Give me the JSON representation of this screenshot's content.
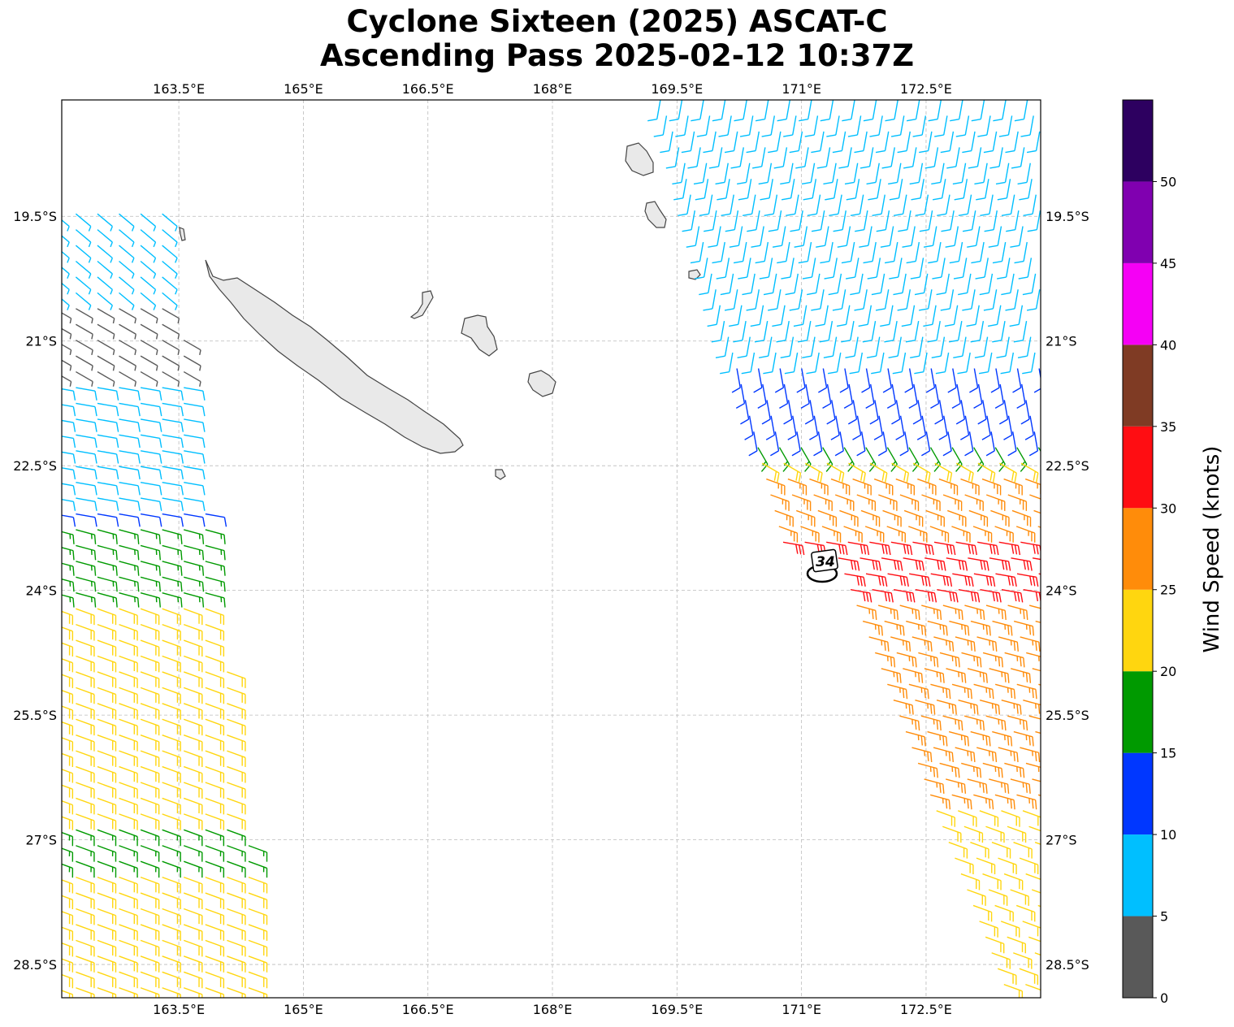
{
  "title": {
    "line1": "Cyclone Sixteen (2025) ASCAT-C",
    "line2": "Ascending Pass 2025-02-12 10:37Z"
  },
  "map": {
    "lon_range": [
      162.09,
      173.88
    ],
    "lat_range": [
      -28.9,
      -18.1
    ],
    "lon_ticks": [
      {
        "value": 163.5,
        "label": "163.5°E"
      },
      {
        "value": 165,
        "label": "165°E"
      },
      {
        "value": 166.5,
        "label": "166.5°E"
      },
      {
        "value": 168,
        "label": "168°E"
      },
      {
        "value": 169.5,
        "label": "169.5°E"
      },
      {
        "value": 171,
        "label": "171°E"
      },
      {
        "value": 172.5,
        "label": "172.5°E"
      }
    ],
    "lat_ticks": [
      {
        "value": -19.5,
        "label": "19.5°S"
      },
      {
        "value": -21,
        "label": "21°S"
      },
      {
        "value": -22.5,
        "label": "22.5°S"
      },
      {
        "value": -24,
        "label": "24°S"
      },
      {
        "value": -25.5,
        "label": "25.5°S"
      },
      {
        "value": -27,
        "label": "27°S"
      },
      {
        "value": -28.5,
        "label": "28.5°S"
      }
    ],
    "gridlines": true,
    "land_color": "#e9e9e9",
    "coast_color": "#444444"
  },
  "storm_marker": {
    "label": "34",
    "lon": 171.38,
    "lat": -23.68
  },
  "colorbar": {
    "label": "Wind Speed (knots)",
    "position": "right",
    "bins": [
      {
        "min": 0,
        "max": 5,
        "color": "#595959"
      },
      {
        "min": 5,
        "max": 10,
        "color": "#00bfff"
      },
      {
        "min": 10,
        "max": 15,
        "color": "#0037ff"
      },
      {
        "min": 15,
        "max": 20,
        "color": "#009a00"
      },
      {
        "min": 20,
        "max": 25,
        "color": "#ffd60f"
      },
      {
        "min": 25,
        "max": 30,
        "color": "#ff8c0a"
      },
      {
        "min": 30,
        "max": 35,
        "color": "#ff0d12"
      },
      {
        "min": 35,
        "max": 40,
        "color": "#7f3b24"
      },
      {
        "min": 40,
        "max": 45,
        "color": "#f500f5"
      },
      {
        "min": 45,
        "max": 50,
        "color": "#8000b0"
      },
      {
        "min": 50,
        "max": 55,
        "color": "#2d0060"
      }
    ],
    "tick_labels": [
      "0",
      "5",
      "10",
      "15",
      "20",
      "25",
      "30",
      "35",
      "40",
      "45",
      "50"
    ]
  },
  "wind_swaths": [
    {
      "name": "west-swath",
      "regions": [
        {
          "lat": [
            -28.9,
            -24.2
          ],
          "speed": 22,
          "dir": 110
        },
        {
          "lat": [
            -24.2,
            -23.2
          ],
          "speed": 17,
          "dir": 105
        },
        {
          "lat": [
            -23.2,
            -22.9
          ],
          "speed": 12,
          "dir": 100
        },
        {
          "lat": [
            -22.9,
            -21.4
          ],
          "speed": 8,
          "dir": 100
        },
        {
          "lat": [
            -21.4,
            -20.5
          ],
          "speed": 4,
          "dir": 120
        },
        {
          "lat": [
            -20.5,
            -19.3
          ],
          "speed": 7,
          "dir": 130
        },
        {
          "lat": [
            -27.3,
            -26.8
          ],
          "speed": 17,
          "dir": 110
        }
      ]
    },
    {
      "name": "east-swath",
      "regions": [
        {
          "lat": [
            -28.9,
            -26.5
          ],
          "speed": 22,
          "dir": 110
        },
        {
          "lat": [
            -26.5,
            -24.0
          ],
          "speed": 27,
          "dir": 105
        },
        {
          "lat": [
            -24.0,
            -23.3
          ],
          "speed": 32,
          "dir": 100
        },
        {
          "lat": [
            -23.3,
            -22.6
          ],
          "speed": 27,
          "dir": 110
        },
        {
          "lat": [
            -22.6,
            -22.0
          ],
          "speed": 22,
          "dir": 120
        },
        {
          "lat": [
            -22.4,
            -20.7
          ],
          "speed": 17,
          "dir": 150
        },
        {
          "lat": [
            -22.2,
            -19.5
          ],
          "speed": 12,
          "dir": 170
        },
        {
          "lat": [
            -21.2,
            -18.1
          ],
          "speed": 8,
          "dir": 190
        }
      ]
    }
  ]
}
